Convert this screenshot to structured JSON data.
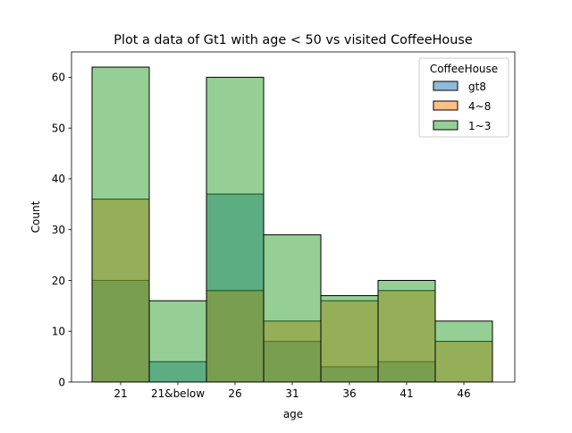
{
  "chart_data": {
    "type": "bar",
    "title": "Plot a data of Gt1 with age < 50 vs visited CoffeeHouse",
    "xlabel": "age",
    "ylabel": "Count",
    "categories": [
      "21",
      "21&below",
      "26",
      "31",
      "36",
      "41",
      "46"
    ],
    "ylim": [
      0,
      65
    ],
    "yticks": [
      0,
      10,
      20,
      30,
      40,
      50,
      60
    ],
    "overlay": true,
    "series": [
      {
        "name": "gt8",
        "color": "#1f77b4",
        "values": [
          20,
          4,
          37,
          8,
          3,
          4,
          0
        ]
      },
      {
        "name": "4~8",
        "color": "#ff7f0e",
        "values": [
          36,
          0,
          18,
          12,
          16,
          18,
          8
        ]
      },
      {
        "name": "1~3",
        "color": "#2ca02c",
        "values": [
          62,
          16,
          60,
          29,
          17,
          20,
          12
        ]
      }
    ],
    "legend": {
      "title": "CoffeeHouse",
      "position": "top-right"
    },
    "grid": false
  }
}
